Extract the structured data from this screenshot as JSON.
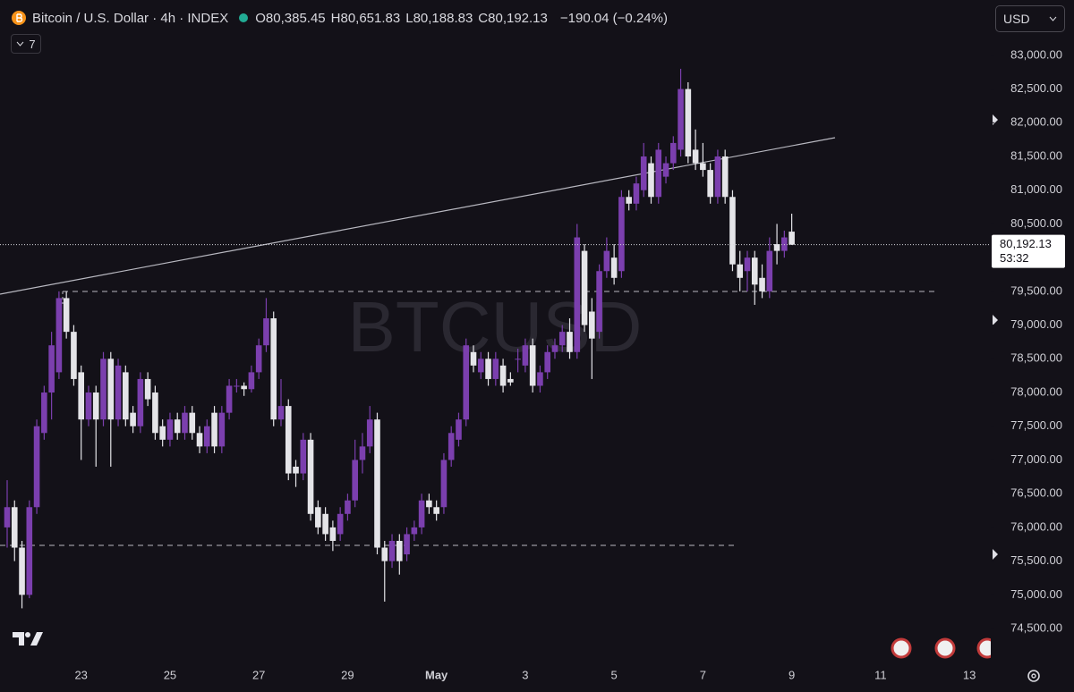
{
  "header": {
    "title": "Bitcoin / U.S. Dollar · 4h · INDEX",
    "fields": [
      {
        "label": "O",
        "value": "80,385.45"
      },
      {
        "label": "H",
        "value": "80,651.83"
      },
      {
        "label": "L",
        "value": "80,188.83"
      },
      {
        "label": "C",
        "value": "80,192.13"
      }
    ],
    "change": "−190.04 (−0.24%)",
    "indicators": "7",
    "currency": "USD"
  },
  "chart_data": {
    "type": "candlestick",
    "watermark": "BTCUSD",
    "up_color": "#7b3fae",
    "down_color": "#e4e4e8",
    "price_label": "80,192.13",
    "countdown": "53:32",
    "categories": [
      null,
      null,
      null,
      null,
      null,
      null,
      null,
      null,
      null,
      null,
      "23",
      null,
      null,
      null,
      null,
      null,
      null,
      null,
      null,
      null,
      null,
      null,
      "25",
      null,
      null,
      null,
      null,
      null,
      null,
      null,
      null,
      null,
      null,
      null,
      "27",
      null,
      null,
      null,
      null,
      null,
      null,
      null,
      null,
      null,
      null,
      null,
      "29",
      null,
      null,
      null,
      null,
      null,
      null,
      null,
      null,
      null,
      null,
      null,
      "May",
      null,
      null,
      null,
      null,
      null,
      null,
      null,
      null,
      null,
      null,
      null,
      "3",
      null,
      null,
      null,
      null,
      null,
      null,
      null,
      null,
      null,
      null,
      null,
      "5",
      null,
      null,
      null,
      null,
      null,
      null,
      null,
      null,
      null,
      null,
      null,
      "7",
      null,
      null,
      null,
      null,
      null,
      null,
      null,
      null,
      null,
      null,
      null,
      "9",
      null,
      null,
      null,
      null,
      null,
      null,
      null,
      null,
      null,
      null,
      null,
      "11",
      null,
      null,
      null,
      null,
      null,
      null,
      null,
      null,
      null,
      null,
      null,
      "13"
    ],
    "open": [
      76000,
      76300,
      75700,
      75000,
      76300,
      77400,
      78000,
      78300,
      79400,
      78900,
      78300,
      77600,
      78000,
      77600,
      78500,
      77600,
      78300,
      77700,
      77500,
      78200,
      78000,
      77500,
      77300,
      77600,
      77400,
      77700,
      77400,
      77200,
      77700,
      77200,
      77700,
      78100,
      78100,
      78050,
      78300,
      78700,
      79100,
      77600,
      77800,
      76900,
      76800,
      77300,
      76300,
      76200,
      76000,
      75900,
      76200,
      76400,
      77000,
      77200,
      77600,
      75700,
      75500,
      75800,
      75600,
      75900,
      76000,
      76400,
      76300,
      76300,
      77000,
      77300,
      77600,
      78600,
      78300,
      78500,
      78200,
      78400,
      78200,
      78500,
      78400,
      78700,
      78100,
      78300,
      78600,
      78700,
      78900,
      78600,
      80100,
      79200,
      78900,
      79800,
      80000,
      79800,
      80900,
      80800,
      81000,
      81400,
      80900,
      81200,
      81400,
      81600,
      82500,
      81600,
      81400,
      81300,
      80900,
      81500,
      80900,
      79900,
      79800,
      80000,
      79700,
      79500,
      80200,
      80100,
      80385.45,
      null,
      null,
      null,
      null,
      null,
      null,
      null,
      null,
      null,
      null,
      null,
      null,
      null,
      null,
      null,
      null,
      null,
      null,
      null,
      null,
      null,
      null,
      null,
      null
    ],
    "high": [
      76700,
      76400,
      75800,
      76400,
      77600,
      78100,
      78900,
      79500,
      79500,
      79000,
      78400,
      78100,
      78100,
      78600,
      78600,
      78500,
      78400,
      77800,
      78300,
      78300,
      78100,
      77600,
      77700,
      77700,
      77800,
      77800,
      77500,
      77600,
      77800,
      77800,
      78200,
      78200,
      78150,
      78400,
      78800,
      79400,
      79200,
      78200,
      77900,
      77000,
      77400,
      77400,
      76400,
      76300,
      76100,
      76300,
      76500,
      77300,
      77400,
      77800,
      77700,
      75800,
      75900,
      75900,
      76000,
      76100,
      76500,
      76500,
      76400,
      77100,
      77500,
      77700,
      78800,
      78700,
      78600,
      78600,
      78600,
      78500,
      78300,
      78650,
      78800,
      78800,
      78400,
      78700,
      78800,
      79000,
      79100,
      80500,
      80200,
      79400,
      79900,
      80300,
      80200,
      81000,
      81000,
      81200,
      81700,
      81500,
      81700,
      81500,
      81800,
      82800,
      82600,
      81900,
      81700,
      81400,
      81600,
      81600,
      81000,
      80100,
      80100,
      80100,
      79900,
      80300,
      80500,
      80400,
      80651.83,
      null,
      null,
      null,
      null,
      null,
      null,
      null,
      null,
      null,
      null,
      null,
      null,
      null,
      null,
      null,
      null,
      null,
      null,
      null,
      null,
      null,
      null,
      null,
      null
    ],
    "low": [
      75700,
      75500,
      74800,
      74950,
      76200,
      77300,
      77600,
      78200,
      78800,
      78100,
      77000,
      77500,
      76900,
      77500,
      76900,
      77500,
      77500,
      77400,
      77400,
      77800,
      77300,
      77200,
      77200,
      77300,
      77300,
      77300,
      77100,
      77100,
      77100,
      77100,
      77600,
      78000,
      77950,
      78000,
      78200,
      78600,
      77500,
      77500,
      76700,
      76600,
      76700,
      76100,
      75900,
      75800,
      75650,
      75800,
      76100,
      76300,
      76800,
      77100,
      75600,
      74900,
      75400,
      75300,
      75500,
      75800,
      75900,
      76200,
      76100,
      76200,
      76900,
      77200,
      77500,
      78300,
      78200,
      78100,
      78100,
      78000,
      78100,
      78300,
      78300,
      78000,
      78000,
      78200,
      78500,
      78600,
      78500,
      78500,
      78900,
      78200,
      78800,
      79700,
      79600,
      79700,
      80700,
      80700,
      80900,
      80800,
      80800,
      81100,
      81300,
      81500,
      81400,
      81300,
      81200,
      80800,
      80800,
      80800,
      79800,
      79500,
      79500,
      79300,
      79400,
      79400,
      79900,
      80000,
      80188.83,
      null,
      null,
      null,
      null,
      null,
      null,
      null,
      null,
      null,
      null,
      null,
      null,
      null,
      null,
      null,
      null,
      null,
      null,
      null,
      null,
      null,
      null,
      null,
      null
    ],
    "close": [
      76300,
      75700,
      75000,
      76300,
      77500,
      78000,
      78700,
      79400,
      78900,
      78200,
      77600,
      78000,
      77600,
      78500,
      77600,
      78400,
      77600,
      77500,
      78200,
      77900,
      77400,
      77300,
      77600,
      77400,
      77700,
      77400,
      77200,
      77500,
      77200,
      77700,
      78100,
      78100,
      78050,
      78300,
      78700,
      79100,
      77600,
      77800,
      76800,
      76800,
      77300,
      76200,
      76000,
      75900,
      75800,
      76200,
      76400,
      77000,
      77200,
      77600,
      75700,
      75500,
      75800,
      75500,
      75900,
      76000,
      76400,
      76300,
      76200,
      77000,
      77400,
      77600,
      78700,
      78400,
      78500,
      78200,
      78500,
      78100,
      78150,
      78500,
      78700,
      78100,
      78300,
      78600,
      78700,
      78900,
      78600,
      80300,
      79000,
      78800,
      79800,
      80100,
      79700,
      80900,
      80800,
      81100,
      81500,
      80900,
      81600,
      81400,
      81700,
      82500,
      81500,
      81400,
      81300,
      80900,
      81500,
      80900,
      79900,
      79700,
      80000,
      79600,
      79500,
      80100,
      80100,
      80300,
      80192.13,
      null,
      null,
      null,
      null,
      null,
      null,
      null,
      null,
      null,
      null,
      null,
      null,
      null,
      null,
      null,
      null,
      null,
      null,
      null,
      null,
      null,
      null,
      null,
      null
    ],
    "ylim": [
      74010,
      83820
    ],
    "yticks": [
      {
        "value": 74500,
        "label": "74,500.00"
      },
      {
        "value": 75000,
        "label": "75,000.00"
      },
      {
        "value": 75500,
        "label": "75,500.00"
      },
      {
        "value": 76000,
        "label": "76,000.00"
      },
      {
        "value": 76500,
        "label": "76,500.00"
      },
      {
        "value": 77000,
        "label": "77,000.00"
      },
      {
        "value": 77500,
        "label": "77,500.00"
      },
      {
        "value": 78000,
        "label": "78,000.00"
      },
      {
        "value": 78500,
        "label": "78,500.00"
      },
      {
        "value": 79000,
        "label": "79,000.00"
      },
      {
        "value": 79500,
        "label": "79,500.00"
      },
      {
        "value": 80000,
        "label": "80,000.00"
      },
      {
        "value": 80500,
        "label": "80,500.00"
      },
      {
        "value": 81000,
        "label": "81,000.00"
      },
      {
        "value": 81500,
        "label": "81,500.00"
      },
      {
        "value": 82000,
        "label": "82,000.00"
      },
      {
        "value": 82500,
        "label": "82,500.00"
      },
      {
        "value": 83000,
        "label": "83,000.00"
      }
    ],
    "grid": false
  }
}
